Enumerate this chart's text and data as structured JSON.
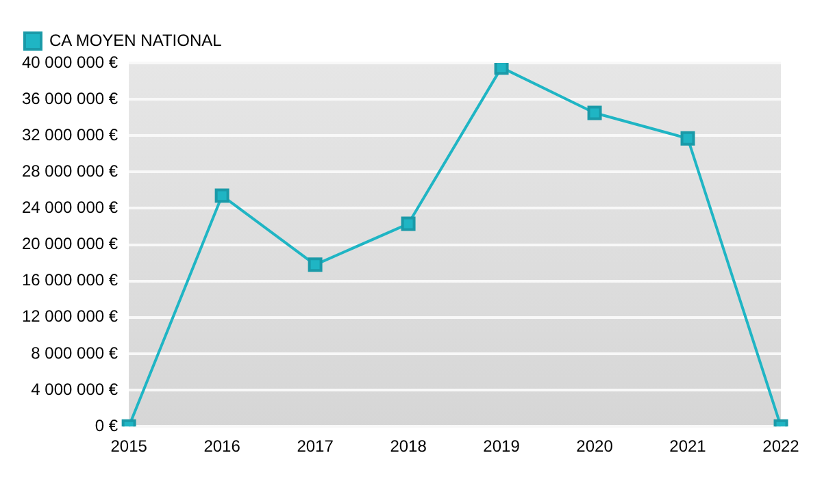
{
  "chart_data": {
    "type": "line",
    "categories": [
      "2015",
      "2016",
      "2017",
      "2018",
      "2019",
      "2020",
      "2021",
      "2022"
    ],
    "series": [
      {
        "name": "CA MOYEN NATIONAL",
        "color": "#1fb5c4",
        "values": [
          0,
          25400000,
          17800000,
          22300000,
          39500000,
          34500000,
          31700000,
          0
        ]
      }
    ],
    "ylim": [
      0,
      40000000
    ],
    "yticks": [
      {
        "value": 0,
        "label": "0 €"
      },
      {
        "value": 4000000,
        "label": "4 000 000 €"
      },
      {
        "value": 8000000,
        "label": "8 000 000 €"
      },
      {
        "value": 12000000,
        "label": "12 000 000 €"
      },
      {
        "value": 16000000,
        "label": "16 000 000 €"
      },
      {
        "value": 20000000,
        "label": "20 000 000 €"
      },
      {
        "value": 24000000,
        "label": "24 000 000 €"
      },
      {
        "value": 28000000,
        "label": "28 000 000 €"
      },
      {
        "value": 32000000,
        "label": "32 000 000 €"
      },
      {
        "value": 36000000,
        "label": "36 000 000 €"
      },
      {
        "value": 40000000,
        "label": "40 000 000 €"
      }
    ],
    "grid": "y",
    "legend": "top left",
    "marker": "square",
    "line_style": "solid"
  }
}
